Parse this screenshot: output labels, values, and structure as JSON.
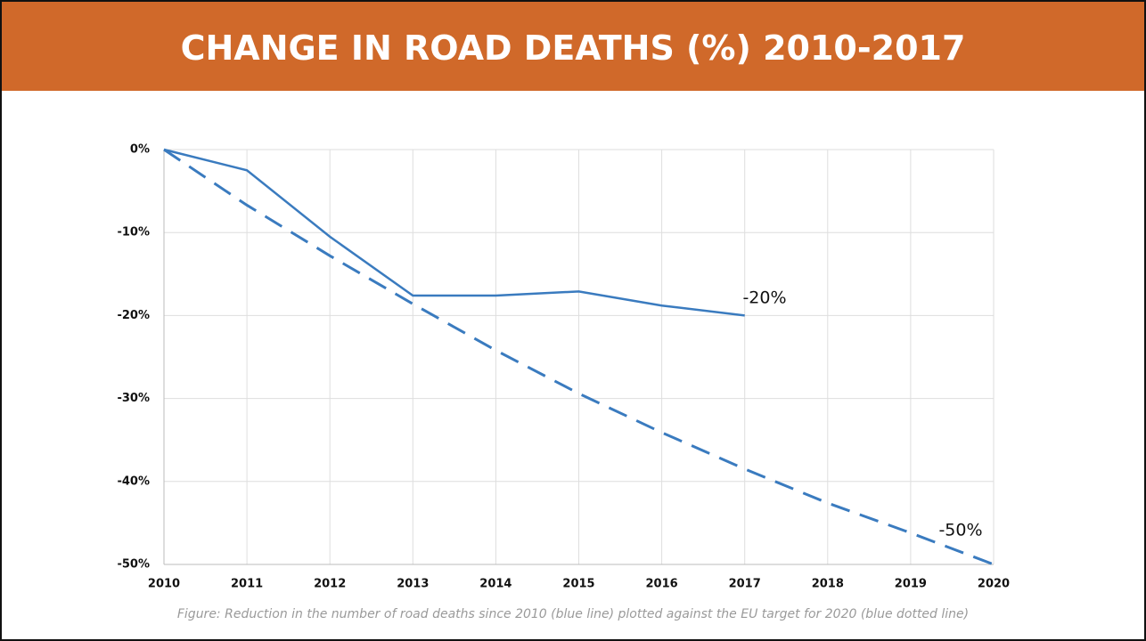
{
  "chart_data": {
    "type": "line",
    "title": "CHANGE IN ROAD DEATHS (%) 2010-2017",
    "caption": "Figure: Reduction in the number of road deaths since 2010 (blue line) plotted against the EU target for 2020 (blue dotted line)",
    "x": [
      2010,
      2011,
      2012,
      2013,
      2014,
      2015,
      2016,
      2017,
      2018,
      2019,
      2020
    ],
    "series": [
      {
        "color": "#3a7bbf",
        "dashed": false,
        "values": [
          0,
          -2.5,
          -10.5,
          -17.6,
          -17.6,
          -17.1,
          -18.8,
          -20,
          null,
          null,
          null
        ]
      },
      {
        "color": "#3a7bbf",
        "dashed": true,
        "values": [
          0,
          -6.7,
          -12.8,
          -18.6,
          -24.2,
          -29.4,
          -34.1,
          -38.5,
          -42.6,
          -46.2,
          -50
        ]
      }
    ],
    "annotations": [
      "-20%",
      "-50%"
    ],
    "xlim": [
      2010,
      2020
    ],
    "xticks": [
      2010,
      2011,
      2012,
      2013,
      2014,
      2015,
      2016,
      2017,
      2018,
      2019,
      2020
    ],
    "ylim": [
      -50,
      0
    ],
    "yticks": [
      {
        "value": 0,
        "label": "0%"
      },
      {
        "value": -10,
        "label": "-10%"
      },
      {
        "value": -20,
        "label": "-20%"
      },
      {
        "value": -30,
        "label": "-30%"
      },
      {
        "value": -40,
        "label": "-40%"
      },
      {
        "value": -50,
        "label": "-50%"
      }
    ],
    "grid": true
  }
}
